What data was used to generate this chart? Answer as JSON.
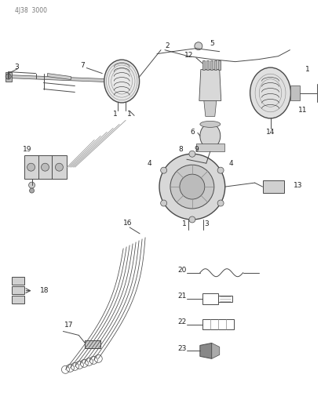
{
  "title": "4J38 3000",
  "background_color": "#ffffff",
  "lc": "#4a4a4a",
  "figsize": [
    4.1,
    5.33
  ],
  "dpi": 100,
  "gray": "#888888",
  "dark": "#222222"
}
